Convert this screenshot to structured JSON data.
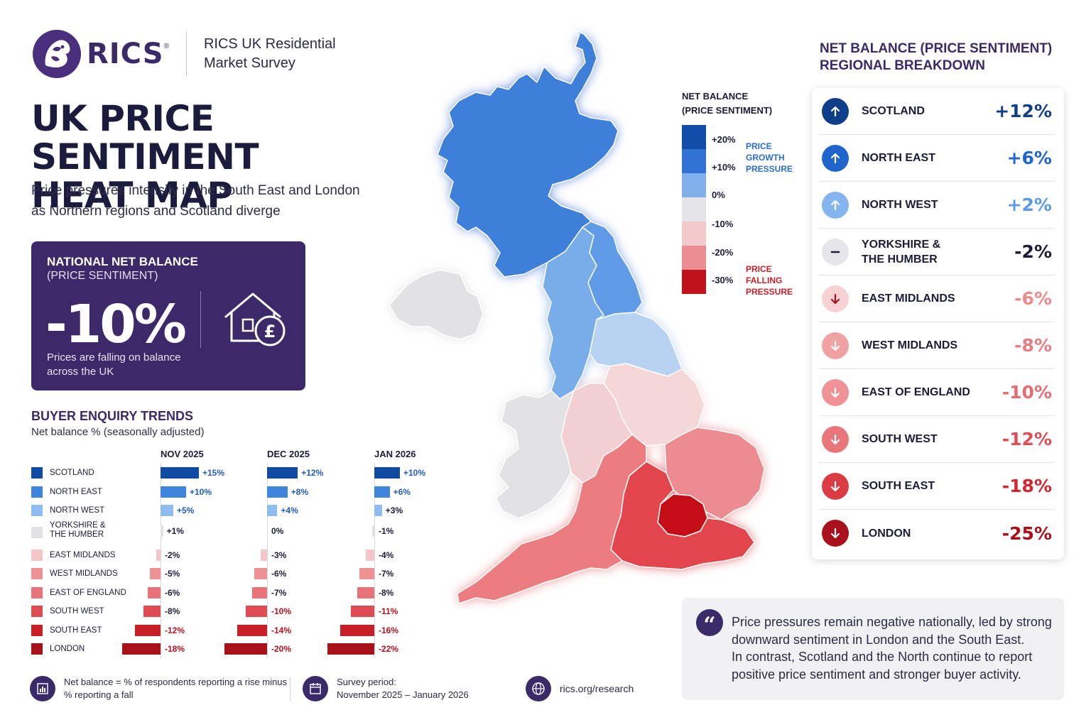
{
  "header": {
    "logo_text": "RICS",
    "survey_line1": "RICS UK Residential",
    "survey_line2": "Market Survey"
  },
  "title_line1": "UK PRICE SENTIMENT",
  "title_line2": "HEAT MAP",
  "subtitle_line1": "Price pressures intensify in the South East and London",
  "subtitle_line2": "as Northern regions and Scotland diverge",
  "national": {
    "label": "NATIONAL NET BALANCE",
    "sub": "(PRICE SENTIMENT)",
    "value": "-10%",
    "desc_line1": "Prices are falling on balance",
    "desc_line2": "across the UK",
    "icon": "house-pound-icon"
  },
  "legend": {
    "title_line1": "NET BALANCE",
    "title_line2": "(PRICE SENTIMENT)",
    "ticks": [
      "+20%",
      "+10%",
      "0%",
      "-10%",
      "-20%",
      "-30%"
    ],
    "colors": [
      "#0f4da8",
      "#2f72d4",
      "#7fb0ec",
      "#e4e4e6",
      "#f3c9cb",
      "#eb8e91",
      "#c0121c"
    ],
    "growth_note": [
      "PRICE",
      "GROWTH",
      "PRESSURE"
    ],
    "falling_note": [
      "PRICE",
      "FALLING",
      "PRESSURE"
    ]
  },
  "regional": {
    "title_line1": "NET BALANCE (PRICE SENTIMENT)",
    "title_line2": "REGIONAL BREAKDOWN",
    "rows": [
      {
        "name": "SCOTLAND",
        "value": "+12%",
        "icon": "arrow-up-icon",
        "color": "#103f8a",
        "icon_bg": "#103f8a"
      },
      {
        "name": "NORTH EAST",
        "value": "+6%",
        "icon": "arrow-up-icon",
        "color": "#1f66cc",
        "icon_bg": "#1f66cc"
      },
      {
        "name": "NORTH WEST",
        "value": "+2%",
        "icon": "arrow-up-icon",
        "color": "#5b9be6",
        "icon_bg": "#84b5ee"
      },
      {
        "name": "YORKSHIRE &",
        "name2": "THE HUMBER",
        "value": "-2%",
        "icon": "minus-icon",
        "color": "#1c1c3a",
        "icon_bg": "#e6e6ea"
      },
      {
        "name": "EAST MIDLANDS",
        "value": "-6%",
        "icon": "arrow-down-icon",
        "color": "#ec8a8e",
        "icon_bg": "#f7d2d4"
      },
      {
        "name": "WEST MIDLANDS",
        "value": "-8%",
        "icon": "arrow-down-icon",
        "color": "#e77c80",
        "icon_bg": "#f0a1a4"
      },
      {
        "name": "EAST OF ENGLAND",
        "value": "-10%",
        "icon": "arrow-down-icon",
        "color": "#e56c71",
        "icon_bg": "#ee9296"
      },
      {
        "name": "SOUTH WEST",
        "value": "-12%",
        "icon": "arrow-down-icon",
        "color": "#df4e55",
        "icon_bg": "#e8767b"
      },
      {
        "name": "SOUTH EAST",
        "value": "-18%",
        "icon": "arrow-down-icon",
        "color": "#d4262f",
        "icon_bg": "#db3c44"
      },
      {
        "name": "LONDON",
        "value": "-25%",
        "icon": "arrow-down-icon",
        "color": "#a8101a",
        "icon_bg": "#a8101a"
      }
    ]
  },
  "trends": {
    "title": "BUYER ENQUIRY TRENDS",
    "subtitle": "Net balance % (seasonally adjusted)"
  },
  "chart_data": {
    "type": "bar",
    "title": "BUYER ENQUIRY TRENDS",
    "subtitle": "Net balance % (seasonally adjusted)",
    "orientation": "horizontal",
    "categories": [
      "SCOTLAND",
      "NORTH EAST",
      "NORTH WEST",
      "YORKSHIRE & THE HUMBER",
      "EAST MIDLANDS",
      "WEST MIDLANDS",
      "EAST OF ENGLAND",
      "SOUTH WEST",
      "SOUTH EAST",
      "LONDON"
    ],
    "category_colors": [
      "#0f4aa3",
      "#3f85dd",
      "#8ebcf1",
      "#e2e2e4",
      "#f3c6c8",
      "#ee9195",
      "#e87479",
      "#df4b52",
      "#c81e28",
      "#a8101a"
    ],
    "series": [
      {
        "name": "NOV 2025",
        "values": [
          15,
          10,
          5,
          1,
          -2,
          -5,
          -6,
          -8,
          -12,
          -18
        ],
        "labels": [
          "+15%",
          "+10%",
          "+5%",
          "+1%",
          "-2%",
          "-5%",
          "-6%",
          "-8%",
          "-12%",
          "-18%"
        ]
      },
      {
        "name": "DEC 2025",
        "values": [
          12,
          8,
          4,
          0,
          -3,
          -6,
          -7,
          -10,
          -14,
          -20
        ],
        "labels": [
          "+12%",
          "+8%",
          "+4%",
          "0%",
          "-3%",
          "-6%",
          "-7%",
          "-10%",
          "-14%",
          "-20%"
        ]
      },
      {
        "name": "JAN 2026",
        "values": [
          10,
          6,
          3,
          -1,
          -4,
          -7,
          -8,
          -11,
          -16,
          -22
        ],
        "labels": [
          "+10%",
          "+6%",
          "+3%",
          "-1%",
          "-4%",
          "-7%",
          "-8%",
          "-11%",
          "-16%",
          "-22%"
        ]
      }
    ]
  },
  "map_regions": {
    "scotland": "#3d7fd9",
    "north_east": "#5f9be6",
    "north_west": "#79ade9",
    "yorkshire": "#b8d2f1",
    "northern_ireland": "#e2e2e4",
    "wales": "#e2e2e4",
    "east_midlands": "#f5d7d8",
    "west_midlands": "#f2cfd1",
    "east_of_england": "#ec8c90",
    "south_west": "#eb7b80",
    "south_east": "#e2454b",
    "london": "#c40d12"
  },
  "footer": {
    "note_line1": "Net balance = % of respondents reporting a rise minus",
    "note_line2": "% reporting a fall",
    "period_line1": "Survey period:",
    "period_line2": "November 2025 – January 2026",
    "website": "rics.org/research"
  },
  "quote": {
    "mark": "“",
    "line1": "Price pressures remain negative nationally, led by strong",
    "line2": "downward sentiment in London and the South East.",
    "line3": "In contrast, Scotland and the North continue to report",
    "line4": "positive price sentiment and stronger buyer activity."
  }
}
